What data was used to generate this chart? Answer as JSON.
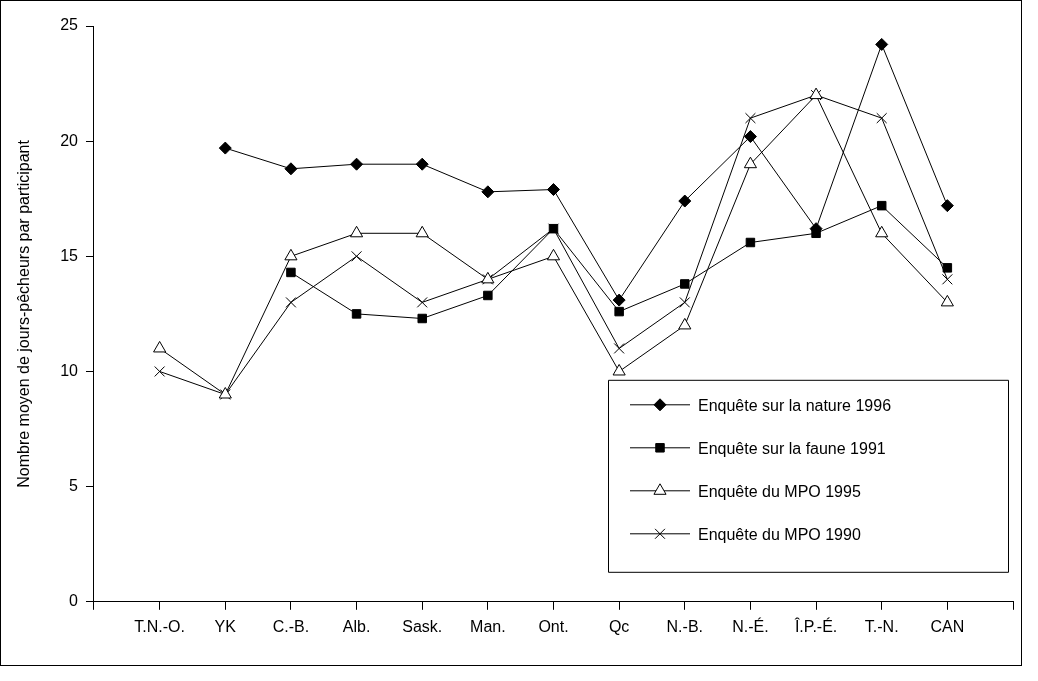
{
  "chart_data": {
    "type": "line",
    "ylabel": "Nombre moyen de jours-pêcheurs par participant",
    "categories": [
      "T.N.-O.",
      "YK",
      "C.-B.",
      "Alb.",
      "Sask.",
      "Man.",
      "Ont.",
      "Qc",
      "N.-B.",
      "N.-É.",
      "Î.P.-É.",
      "T.-N.",
      "CAN"
    ],
    "series": [
      {
        "name": "Enquête sur la nature 1996",
        "color": "#000000",
        "marker": "diamond",
        "values": [
          null,
          19.7,
          18.8,
          19.0,
          19.0,
          17.8,
          17.9,
          13.1,
          17.4,
          20.2,
          16.2,
          24.2,
          17.2
        ]
      },
      {
        "name": "Enquête sur la faune 1991",
        "color": "#000000",
        "marker": "square",
        "values": [
          null,
          null,
          14.3,
          12.5,
          12.3,
          13.3,
          16.2,
          12.6,
          13.8,
          15.6,
          16.0,
          17.2,
          14.5
        ]
      },
      {
        "name": "Enquête du MPO 1995",
        "color": "#000000",
        "marker": "triangle",
        "values": [
          11.0,
          9.0,
          15.0,
          16.0,
          16.0,
          14.0,
          15.0,
          10.0,
          12.0,
          19.0,
          22.0,
          16.0,
          13.0
        ]
      },
      {
        "name": "Enquête du MPO 1990",
        "color": "#000000",
        "marker": "cross",
        "values": [
          10.0,
          9.0,
          13.0,
          15.0,
          13.0,
          14.0,
          16.2,
          11.0,
          13.0,
          21.0,
          22.0,
          21.0,
          14.0
        ]
      }
    ],
    "ylim": [
      0,
      25
    ],
    "yticks": [
      0,
      5,
      10,
      15,
      20,
      25
    ],
    "grid": false,
    "legend": "bottom right"
  }
}
